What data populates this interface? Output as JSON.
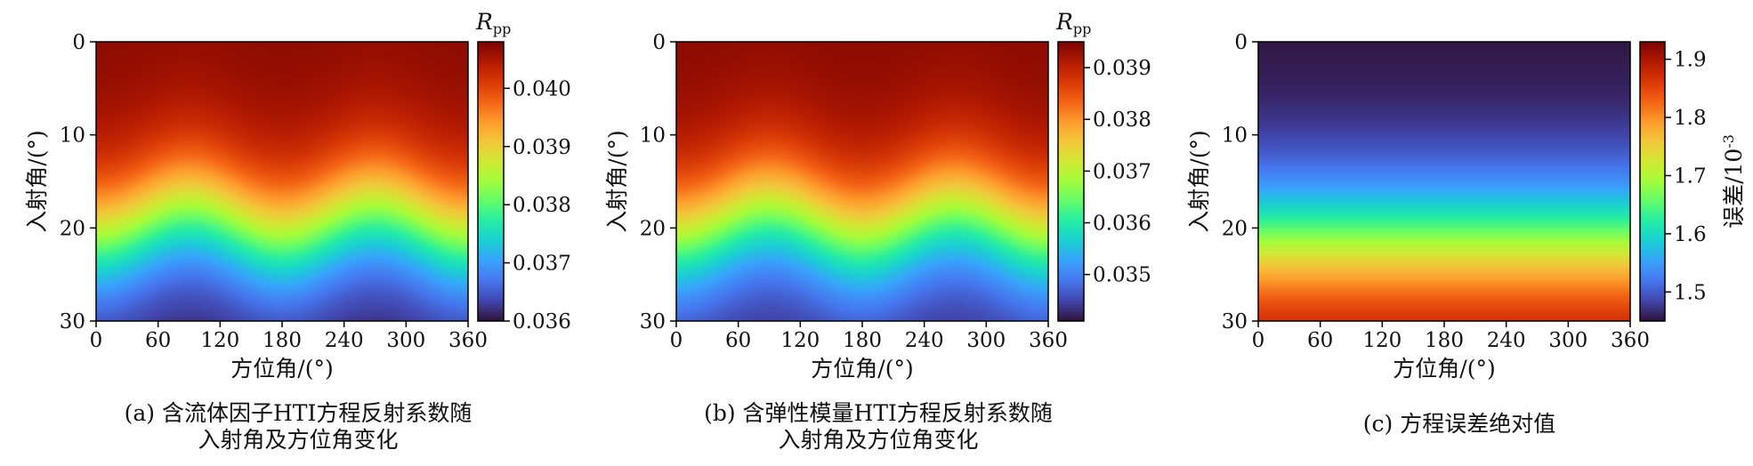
{
  "colormap": [
    "#30123b",
    "#4145ab",
    "#4675ed",
    "#39a2fc",
    "#1bcfd4",
    "#24eca6",
    "#61fc6c",
    "#a4fc3b",
    "#d1e834",
    "#f3c63a",
    "#fe9b2d",
    "#f36315",
    "#d93806",
    "#b11901",
    "#7a0402"
  ],
  "chart_data": [
    {
      "type": "heatmap",
      "panel": "a",
      "caption": [
        "(a) 含流体因子HTI方程反射系数随",
        "入射角及方位角变化"
      ],
      "xlabel": "方位角/(°)",
      "ylabel": "入射角/(°)",
      "xlim": [
        0,
        360
      ],
      "ylim": [
        30,
        0
      ],
      "xticks": [
        0,
        60,
        120,
        180,
        240,
        300,
        360
      ],
      "yticks": [
        0,
        10,
        20,
        30
      ],
      "colorbar": {
        "label": "R",
        "label_sub": "pp",
        "range": [
          0.036,
          0.0408
        ],
        "ticks": [
          "0.036",
          "0.037",
          "0.038",
          "0.039",
          "0.040"
        ]
      },
      "field": {
        "top_value": 0.0407,
        "bottom_value": 0.036,
        "transition_center_deg": 19.5,
        "transition_width_deg": 4.2,
        "azimuth_wave_amplitude_deg": 1.6,
        "azimuth_wave_period_deg": 180,
        "azimuth_wave_peak_deg": 90
      }
    },
    {
      "type": "heatmap",
      "panel": "b",
      "caption": [
        "(b) 含弹性模量HTI方程反射系数随",
        "入射角及方位角变化"
      ],
      "xlabel": "方位角/(°)",
      "ylabel": "入射角/(°)",
      "xlim": [
        0,
        360
      ],
      "ylim": [
        30,
        0
      ],
      "xticks": [
        0,
        60,
        120,
        180,
        240,
        300,
        360
      ],
      "yticks": [
        0,
        10,
        20,
        30
      ],
      "colorbar": {
        "label": "R",
        "label_sub": "pp",
        "range": [
          0.0341,
          0.0395
        ],
        "ticks": [
          "0.035",
          "0.036",
          "0.037",
          "0.038",
          "0.039"
        ]
      },
      "field": {
        "top_value": 0.0394,
        "bottom_value": 0.0342,
        "transition_center_deg": 19.5,
        "transition_width_deg": 4.2,
        "azimuth_wave_amplitude_deg": 1.6,
        "azimuth_wave_period_deg": 180,
        "azimuth_wave_peak_deg": 90
      }
    },
    {
      "type": "heatmap",
      "panel": "c",
      "caption": [
        "(c) 方程误差绝对值"
      ],
      "xlabel": "方位角/(°)",
      "ylabel": "入射角/(°)",
      "xlim": [
        0,
        360
      ],
      "ylim": [
        30,
        0
      ],
      "xticks": [
        0,
        60,
        120,
        180,
        240,
        300,
        360
      ],
      "yticks": [
        0,
        10,
        20,
        30
      ],
      "colorbar": {
        "label": "误差/10",
        "label_sup": "-3",
        "range": [
          1.45,
          1.93
        ],
        "ticks": [
          "1.5",
          "1.6",
          "1.7",
          "1.8",
          "1.9"
        ]
      },
      "field": {
        "top_value": 1.45,
        "bottom_value": 1.93,
        "transition_center_deg": 21.5,
        "transition_width_deg": 4.5,
        "azimuth_wave_amplitude_deg": 0,
        "azimuth_wave_period_deg": 180,
        "azimuth_wave_peak_deg": 90
      }
    }
  ]
}
